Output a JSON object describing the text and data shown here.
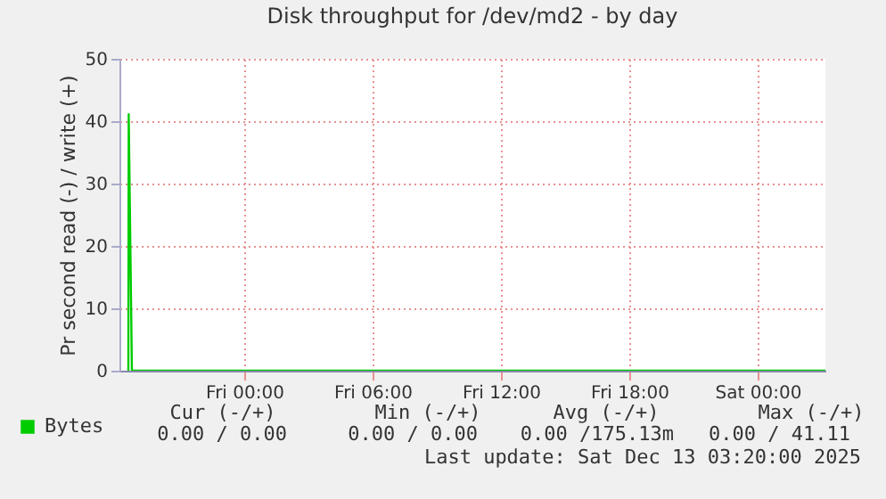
{
  "chart_data": {
    "type": "line",
    "title": "Disk throughput for /dev/md2 - by day",
    "ylabel": "Pr second read (-) / write (+)",
    "x": [
      "2025-12-11T18:35",
      "2025-12-11T18:36",
      "2025-12-11T18:45",
      "2025-12-12T00:00",
      "2025-12-12T12:00",
      "2025-12-13T03:10"
    ],
    "series": [
      {
        "name": "Bytes",
        "color": "#00cc00",
        "values": [
          0,
          41.11,
          0,
          0,
          0,
          0
        ]
      }
    ],
    "xlim": [
      "2025-12-11T18:10",
      "2025-12-13T03:10"
    ],
    "xticks": [
      {
        "value": "2025-12-12T00:00",
        "label": "Fri 00:00"
      },
      {
        "value": "2025-12-12T06:00",
        "label": "Fri 06:00"
      },
      {
        "value": "2025-12-12T12:00",
        "label": "Fri 12:00"
      },
      {
        "value": "2025-12-12T18:00",
        "label": "Fri 18:00"
      },
      {
        "value": "2025-12-13T00:00",
        "label": "Sat 00:00"
      }
    ],
    "ylim": [
      0,
      50
    ],
    "yticks": [
      0,
      10,
      20,
      30,
      40,
      50
    ],
    "grid": true,
    "legend": "bottom left",
    "annotations": [
      "Cur (-/+)",
      "Min (-/+)",
      "Avg (-/+)",
      "Max (-/+)",
      "0.00 /  0.00",
      "0.00 /  0.00",
      "0.00 /175.13m",
      "0.00 / 41.11",
      "Last update: Sat Dec 13 03:20:00 2025"
    ]
  }
}
